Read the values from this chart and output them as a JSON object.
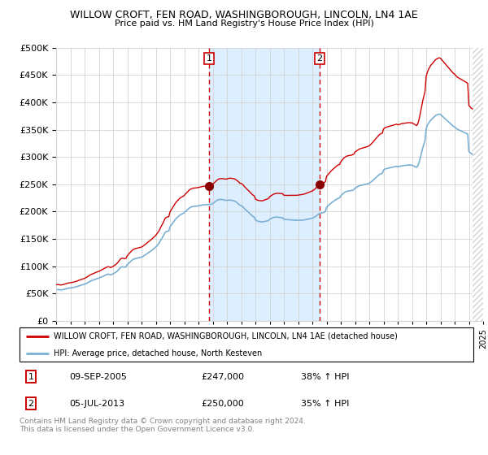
{
  "title": "WILLOW CROFT, FEN ROAD, WASHINGBOROUGH, LINCOLN, LN4 1AE",
  "subtitle": "Price paid vs. HM Land Registry's House Price Index (HPI)",
  "ylim": [
    0,
    500000
  ],
  "yticks": [
    0,
    50000,
    100000,
    150000,
    200000,
    250000,
    300000,
    350000,
    400000,
    450000,
    500000
  ],
  "xlim_start": 1995.0,
  "xlim_end": 2025.0,
  "line1_color": "#cc0000",
  "line2_color": "#7ab0d4",
  "vline_color": "#cc0000",
  "shade_color": "#ddeeff",
  "legend_line1": "WILLOW CROFT, FEN ROAD, WASHINGBOROUGH, LINCOLN, LN4 1AE (detached house)",
  "legend_line2": "HPI: Average price, detached house, North Kesteven",
  "sale1_date": "09-SEP-2005",
  "sale1_price": "£247,000",
  "sale1_hpi": "38% ↑ HPI",
  "sale2_date": "05-JUL-2013",
  "sale2_price": "£250,000",
  "sale2_hpi": "35% ↑ HPI",
  "footer": "Contains HM Land Registry data © Crown copyright and database right 2024.\nThis data is licensed under the Open Government Licence v3.0.",
  "sale1_x": 2005.75,
  "sale2_x": 2013.5,
  "sale1_y": 247000,
  "sale2_y": 250000,
  "hpi_x": [
    1995.0,
    1995.083,
    1995.167,
    1995.25,
    1995.333,
    1995.417,
    1995.5,
    1995.583,
    1995.667,
    1995.75,
    1995.833,
    1995.917,
    1996.0,
    1996.083,
    1996.167,
    1996.25,
    1996.333,
    1996.417,
    1996.5,
    1996.583,
    1996.667,
    1996.75,
    1996.833,
    1996.917,
    1997.0,
    1997.083,
    1997.167,
    1997.25,
    1997.333,
    1997.417,
    1997.5,
    1997.583,
    1997.667,
    1997.75,
    1997.833,
    1997.917,
    1998.0,
    1998.083,
    1998.167,
    1998.25,
    1998.333,
    1998.417,
    1998.5,
    1998.583,
    1998.667,
    1998.75,
    1998.833,
    1998.917,
    1999.0,
    1999.083,
    1999.167,
    1999.25,
    1999.333,
    1999.417,
    1999.5,
    1999.583,
    1999.667,
    1999.75,
    1999.833,
    1999.917,
    2000.0,
    2000.083,
    2000.167,
    2000.25,
    2000.333,
    2000.417,
    2000.5,
    2000.583,
    2000.667,
    2000.75,
    2000.833,
    2000.917,
    2001.0,
    2001.083,
    2001.167,
    2001.25,
    2001.333,
    2001.417,
    2001.5,
    2001.583,
    2001.667,
    2001.75,
    2001.833,
    2001.917,
    2002.0,
    2002.083,
    2002.167,
    2002.25,
    2002.333,
    2002.417,
    2002.5,
    2002.583,
    2002.667,
    2002.75,
    2002.833,
    2002.917,
    2003.0,
    2003.083,
    2003.167,
    2003.25,
    2003.333,
    2003.417,
    2003.5,
    2003.583,
    2003.667,
    2003.75,
    2003.833,
    2003.917,
    2004.0,
    2004.083,
    2004.167,
    2004.25,
    2004.333,
    2004.417,
    2004.5,
    2004.583,
    2004.667,
    2004.75,
    2004.833,
    2004.917,
    2005.0,
    2005.083,
    2005.167,
    2005.25,
    2005.333,
    2005.417,
    2005.5,
    2005.583,
    2005.667,
    2005.75,
    2005.833,
    2005.917,
    2006.0,
    2006.083,
    2006.167,
    2006.25,
    2006.333,
    2006.417,
    2006.5,
    2006.583,
    2006.667,
    2006.75,
    2006.833,
    2006.917,
    2007.0,
    2007.083,
    2007.167,
    2007.25,
    2007.333,
    2007.417,
    2007.5,
    2007.583,
    2007.667,
    2007.75,
    2007.833,
    2007.917,
    2008.0,
    2008.083,
    2008.167,
    2008.25,
    2008.333,
    2008.417,
    2008.5,
    2008.583,
    2008.667,
    2008.75,
    2008.833,
    2008.917,
    2009.0,
    2009.083,
    2009.167,
    2009.25,
    2009.333,
    2009.417,
    2009.5,
    2009.583,
    2009.667,
    2009.75,
    2009.833,
    2009.917,
    2010.0,
    2010.083,
    2010.167,
    2010.25,
    2010.333,
    2010.417,
    2010.5,
    2010.583,
    2010.667,
    2010.75,
    2010.833,
    2010.917,
    2011.0,
    2011.083,
    2011.167,
    2011.25,
    2011.333,
    2011.417,
    2011.5,
    2011.583,
    2011.667,
    2011.75,
    2011.833,
    2011.917,
    2012.0,
    2012.083,
    2012.167,
    2012.25,
    2012.333,
    2012.417,
    2012.5,
    2012.583,
    2012.667,
    2012.75,
    2012.833,
    2012.917,
    2013.0,
    2013.083,
    2013.167,
    2013.25,
    2013.333,
    2013.417,
    2013.5,
    2013.583,
    2013.667,
    2013.75,
    2013.833,
    2013.917,
    2014.0,
    2014.083,
    2014.167,
    2014.25,
    2014.333,
    2014.417,
    2014.5,
    2014.583,
    2014.667,
    2014.75,
    2014.833,
    2014.917,
    2015.0,
    2015.083,
    2015.167,
    2015.25,
    2015.333,
    2015.417,
    2015.5,
    2015.583,
    2015.667,
    2015.75,
    2015.833,
    2015.917,
    2016.0,
    2016.083,
    2016.167,
    2016.25,
    2016.333,
    2016.417,
    2016.5,
    2016.583,
    2016.667,
    2016.75,
    2016.833,
    2016.917,
    2017.0,
    2017.083,
    2017.167,
    2017.25,
    2017.333,
    2017.417,
    2017.5,
    2017.583,
    2017.667,
    2017.75,
    2017.833,
    2017.917,
    2018.0,
    2018.083,
    2018.167,
    2018.25,
    2018.333,
    2018.417,
    2018.5,
    2018.583,
    2018.667,
    2018.75,
    2018.833,
    2018.917,
    2019.0,
    2019.083,
    2019.167,
    2019.25,
    2019.333,
    2019.417,
    2019.5,
    2019.583,
    2019.667,
    2019.75,
    2019.833,
    2019.917,
    2020.0,
    2020.083,
    2020.167,
    2020.25,
    2020.333,
    2020.417,
    2020.5,
    2020.583,
    2020.667,
    2020.75,
    2020.833,
    2020.917,
    2021.0,
    2021.083,
    2021.167,
    2021.25,
    2021.333,
    2021.417,
    2021.5,
    2021.583,
    2021.667,
    2021.75,
    2021.833,
    2021.917,
    2022.0,
    2022.083,
    2022.167,
    2022.25,
    2022.333,
    2022.417,
    2022.5,
    2022.583,
    2022.667,
    2022.75,
    2022.833,
    2022.917,
    2023.0,
    2023.083,
    2023.167,
    2023.25,
    2023.333,
    2023.417,
    2023.5,
    2023.583,
    2023.667,
    2023.75,
    2023.833,
    2023.917,
    2024.0,
    2024.083,
    2024.167,
    2024.25
  ],
  "hpi_y": [
    57000,
    57200,
    57100,
    56800,
    56500,
    56800,
    57200,
    57800,
    58300,
    59000,
    59500,
    59800,
    60000,
    60300,
    60800,
    61200,
    61800,
    62400,
    63000,
    63800,
    64500,
    65200,
    65800,
    66300,
    67000,
    68000,
    69000,
    70200,
    71500,
    72800,
    73500,
    74200,
    75000,
    76000,
    76800,
    77500,
    78000,
    79000,
    80000,
    81000,
    82000,
    83000,
    84000,
    85000,
    85500,
    84800,
    84000,
    85000,
    86000,
    87200,
    88500,
    90000,
    92000,
    94500,
    97000,
    98500,
    99000,
    98500,
    98000,
    99000,
    103000,
    105000,
    107000,
    109000,
    111000,
    112500,
    113500,
    114000,
    114500,
    115000,
    115500,
    116000,
    116500,
    117500,
    119000,
    120500,
    122000,
    123500,
    125000,
    126500,
    128000,
    129500,
    131500,
    133000,
    135000,
    137500,
    140000,
    143000,
    147000,
    150500,
    154000,
    158000,
    162000,
    163500,
    164000,
    164500,
    172000,
    175000,
    178000,
    181000,
    184000,
    187000,
    189000,
    191000,
    193000,
    194500,
    195500,
    196500,
    198000,
    200000,
    202000,
    204000,
    206000,
    207500,
    208500,
    209000,
    209500,
    209800,
    210000,
    210200,
    210500,
    211000,
    211500,
    212000,
    212300,
    212500,
    212700,
    212800,
    212900,
    213000,
    213200,
    213500,
    215000,
    216500,
    218000,
    219500,
    221000,
    222000,
    222200,
    222100,
    222000,
    221500,
    221000,
    220500,
    220500,
    221000,
    221200,
    221000,
    220500,
    220000,
    219500,
    218500,
    217000,
    215500,
    213500,
    211500,
    211000,
    209500,
    207500,
    205000,
    203000,
    201000,
    199000,
    197000,
    195000,
    193000,
    191000,
    190000,
    185000,
    183500,
    182500,
    182000,
    181500,
    181200,
    181000,
    181500,
    182000,
    182500,
    183000,
    183500,
    186000,
    187000,
    188000,
    189000,
    189500,
    189800,
    190000,
    189800,
    189500,
    189200,
    188800,
    188500,
    186000,
    185800,
    185500,
    185200,
    185000,
    185000,
    184800,
    184600,
    184400,
    184200,
    184100,
    184000,
    184000,
    184100,
    184200,
    184300,
    184400,
    184600,
    185000,
    185500,
    186000,
    186500,
    187000,
    187500,
    188000,
    189000,
    190000,
    191500,
    193000,
    195000,
    196500,
    197000,
    197500,
    198000,
    199000,
    200000,
    208000,
    210000,
    212000,
    214000,
    216000,
    217500,
    219000,
    220500,
    222000,
    223500,
    224500,
    225000,
    229000,
    231000,
    233000,
    235000,
    236000,
    237000,
    237500,
    237800,
    238000,
    238500,
    239000,
    240000,
    243000,
    244000,
    245500,
    246500,
    247500,
    248000,
    248500,
    249000,
    249500,
    250000,
    250500,
    251000,
    252000,
    253500,
    255000,
    257000,
    259000,
    261000,
    263000,
    265000,
    267000,
    268500,
    269500,
    270000,
    276000,
    277500,
    278500,
    279000,
    279500,
    280000,
    280500,
    281000,
    281500,
    282000,
    282500,
    283000,
    282000,
    282500,
    283000,
    283500,
    284000,
    284200,
    284500,
    284800,
    285000,
    285200,
    285300,
    285000,
    285000,
    284000,
    283000,
    282000,
    281000,
    284000,
    290000,
    298000,
    307000,
    316000,
    323000,
    330000,
    352000,
    358000,
    362000,
    365000,
    368000,
    370000,
    372000,
    374000,
    376000,
    377000,
    378000,
    378500,
    378000,
    376000,
    374000,
    372000,
    370000,
    368000,
    366000,
    364000,
    362000,
    360000,
    358000,
    356000,
    355000,
    353000,
    351000,
    350000,
    349000,
    348000,
    347000,
    346000,
    345000,
    344000,
    343000,
    342000,
    310000,
    308000,
    306000,
    305000
  ]
}
